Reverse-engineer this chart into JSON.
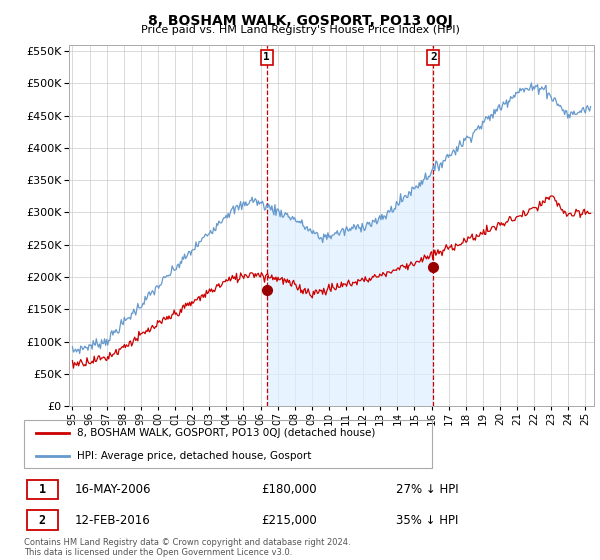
{
  "title": "8, BOSHAM WALK, GOSPORT, PO13 0QJ",
  "subtitle": "Price paid vs. HM Land Registry's House Price Index (HPI)",
  "hpi_color": "#6699cc",
  "hpi_fill_color": "#ddeeff",
  "price_color": "#cc0000",
  "marker_color": "#990000",
  "annotation_color": "#cc0000",
  "grid_color": "#cccccc",
  "background_color": "#ffffff",
  "ylim": [
    0,
    560000
  ],
  "yticks": [
    0,
    50000,
    100000,
    150000,
    200000,
    250000,
    300000,
    350000,
    400000,
    450000,
    500000,
    550000
  ],
  "xlim_start": 1994.8,
  "xlim_end": 2025.5,
  "transaction1_x": 2006.37,
  "transaction1_y": 180000,
  "transaction1_label": "1",
  "transaction1_date": "16-MAY-2006",
  "transaction1_price": "£180,000",
  "transaction1_note": "27% ↓ HPI",
  "transaction2_x": 2016.1,
  "transaction2_y": 215000,
  "transaction2_label": "2",
  "transaction2_date": "12-FEB-2016",
  "transaction2_price": "£215,000",
  "transaction2_note": "35% ↓ HPI",
  "legend_label_price": "8, BOSHAM WALK, GOSPORT, PO13 0QJ (detached house)",
  "legend_label_hpi": "HPI: Average price, detached house, Gosport",
  "footer": "Contains HM Land Registry data © Crown copyright and database right 2024.\nThis data is licensed under the Open Government Licence v3.0."
}
